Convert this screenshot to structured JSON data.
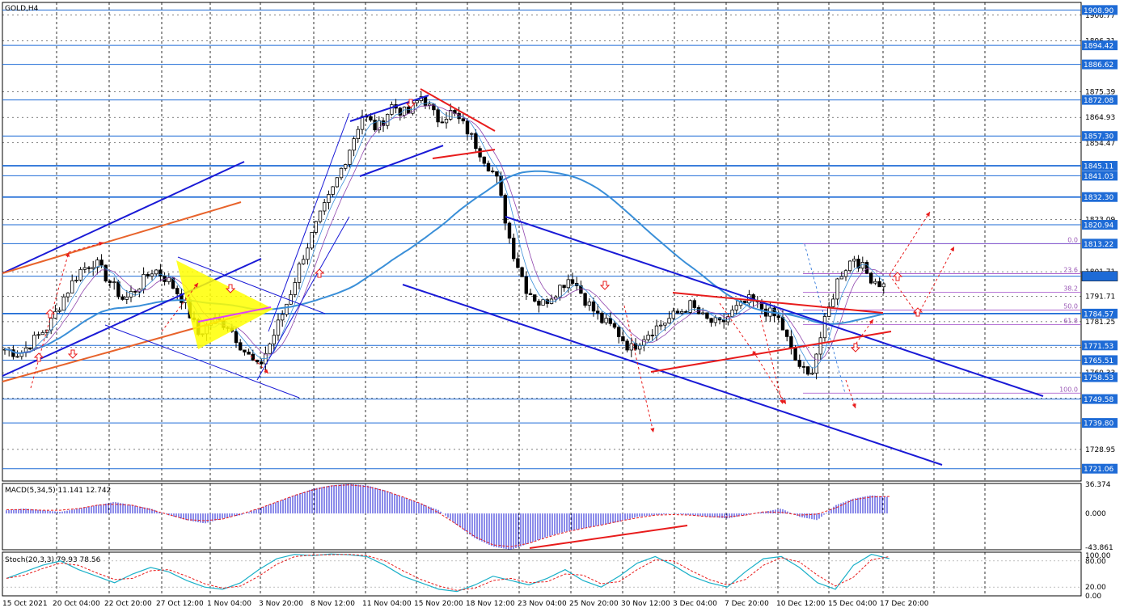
{
  "window": {
    "title": "GOLD,H4"
  },
  "colors": {
    "bull_candle": "#000000",
    "bear_candle": "#000000",
    "grid": "#7f8c8d",
    "level_line": "#1e6bd6",
    "price_tag": "#1e6bd6",
    "channel_blue": "#1a1ad6",
    "channel_orange": "#e8632b",
    "ma_long": "#3a8fd8",
    "trend_red": "#e81c1c",
    "fib": "#a04bc8",
    "macd_hist": "#1a1ad6",
    "macd_signal": "#e81c1c",
    "stoch_main": "#1ab0c8",
    "stoch_signal": "#e81c1c",
    "triangle_fill": "#ffff00"
  },
  "chart_data": {
    "type": "candlestick",
    "symbol": "GOLD",
    "timeframe": "H4",
    "ylim": [
      1716,
      1912
    ],
    "price_ticks": [
      1906.77,
      1896.31,
      1875.39,
      1864.93,
      1854.47,
      1823.09,
      1801.71,
      1791.71,
      1781.25,
      1770.79,
      1760.33,
      1749.87,
      1728.95
    ],
    "x_labels": [
      "15 Oct 2021",
      "20 Oct 04:00",
      "22 Oct 20:00",
      "27 Oct 12:00",
      "1 Nov 04:00",
      "3 Nov 20:00",
      "8 Nov 12:00",
      "11 Nov 04:00",
      "15 Nov 20:00",
      "18 Nov 12:00",
      "23 Nov 04:00",
      "25 Nov 20:00",
      "30 Nov 12:00",
      "3 Dec 04:00",
      "7 Dec 20:00",
      "10 Dec 12:00",
      "15 Dec 04:00",
      "17 Dec 20:00"
    ],
    "price_levels": [
      1908.9,
      1894.42,
      1886.62,
      1872.08,
      1857.3,
      1845.11,
      1841.03,
      1832.3,
      1820.94,
      1813.22,
      1799.88,
      1784.57,
      1771.53,
      1765.51,
      1758.53,
      1749.58,
      1739.8,
      1721.06
    ],
    "current_price": 1799.88,
    "close_path": [
      1770,
      1768,
      1774,
      1780,
      1792,
      1802,
      1806,
      1798,
      1790,
      1796,
      1803,
      1798,
      1790,
      1776,
      1782,
      1780,
      1770,
      1762,
      1775,
      1790,
      1808,
      1822,
      1835,
      1850,
      1866,
      1860,
      1870,
      1866,
      1874,
      1864,
      1867,
      1860,
      1850,
      1840,
      1812,
      1795,
      1788,
      1794,
      1800,
      1790,
      1782,
      1778,
      1770,
      1776,
      1780,
      1784,
      1788,
      1782,
      1780,
      1786,
      1790,
      1786,
      1782,
      1766,
      1758,
      1780,
      1800,
      1808,
      1800,
      1796
    ],
    "fibonacci": [
      {
        "label": "0.0",
        "price": 1813.22
      },
      {
        "label": "23.6",
        "price": 1800.9
      },
      {
        "label": "38.2",
        "price": 1793.3
      },
      {
        "label": "50.0",
        "price": 1786.0
      },
      {
        "label": "61.8",
        "price": 1780.1
      },
      {
        "label": "100.0",
        "price": 1752.0
      }
    ],
    "macd": {
      "label": "MACD(5,34,5) 11.141 12.742",
      "ylim": [
        -43.861,
        36.374
      ],
      "ticks": [
        "36.374",
        "0.000",
        "-43.861"
      ],
      "histogram": [
        4,
        6,
        4,
        2,
        6,
        10,
        14,
        10,
        6,
        -2,
        -8,
        -12,
        -6,
        -2,
        6,
        14,
        22,
        30,
        34,
        36,
        34,
        28,
        20,
        12,
        4,
        -14,
        -30,
        -40,
        -44,
        -36,
        -28,
        -22,
        -18,
        -14,
        -10,
        -4,
        -2,
        0,
        -2,
        -4,
        -6,
        -2,
        2,
        6,
        -4,
        -8,
        10,
        18,
        22,
        20
      ]
    },
    "stoch": {
      "label": "Stoch(20,3,3) 79.93 78.56",
      "ylim": [
        0,
        100
      ],
      "ticks": [
        "100.00",
        "80.00",
        "20.00",
        "0.00"
      ],
      "main": [
        40,
        55,
        70,
        80,
        60,
        45,
        30,
        50,
        65,
        55,
        35,
        20,
        15,
        30,
        60,
        85,
        95,
        92,
        96,
        94,
        90,
        70,
        45,
        30,
        15,
        10,
        25,
        45,
        35,
        25,
        40,
        60,
        35,
        20,
        45,
        75,
        90,
        70,
        45,
        30,
        20,
        55,
        85,
        90,
        65,
        30,
        15,
        70,
        95,
        85
      ]
    }
  }
}
